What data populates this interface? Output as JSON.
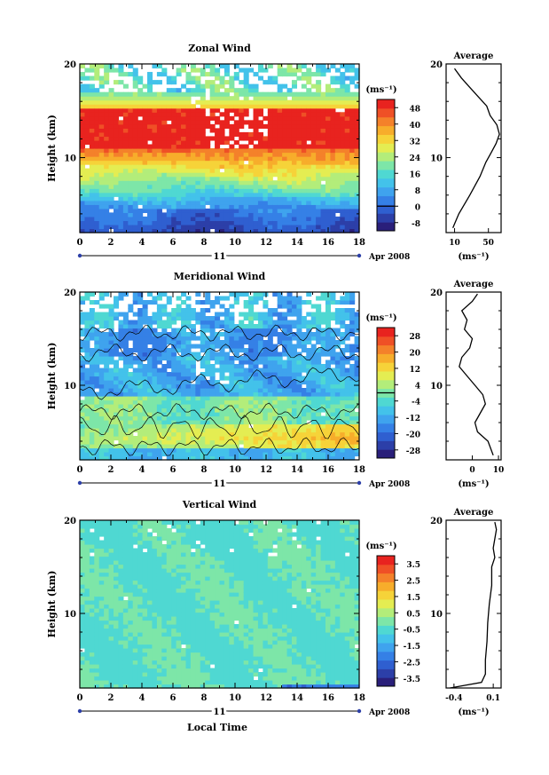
{
  "xlabel": "Local Time",
  "date_label": "Apr 2008",
  "day_label": "11",
  "cbar_unit": "(ms⁻¹)",
  "avg_xlabel": "(ms⁻¹)",
  "colorscale": [
    "#2a1f7a",
    "#2c3fa8",
    "#2f5fd0",
    "#3580e6",
    "#3fa3ee",
    "#43c2ea",
    "#4fd8d2",
    "#7de6a8",
    "#b3ed7a",
    "#e4ed52",
    "#f6d339",
    "#f7ad2b",
    "#f4812a",
    "#ef5026",
    "#e8231f"
  ],
  "chart_data": [
    {
      "id": "zonal",
      "type": "heatmap",
      "title": "Zonal Wind",
      "ylabel": "Height (km)",
      "xlim": [
        0,
        18
      ],
      "ylim": [
        2,
        20
      ],
      "xticks": [
        "0",
        "2",
        "4",
        "6",
        "8",
        "10",
        "12",
        "14",
        "16",
        "18"
      ],
      "yticks": [
        "10",
        "20"
      ],
      "colorbar_ticks": [
        "48",
        "40",
        "32",
        "24",
        "16",
        "8",
        "0",
        "-8"
      ],
      "colorbar_range": [
        -12,
        52
      ],
      "average": {
        "title": "Average",
        "xticks": [
          "10",
          "50"
        ],
        "xlim": [
          0,
          65
        ],
        "heights": [
          2.5,
          4,
          6,
          8,
          9.5,
          10.5,
          11.5,
          12.5,
          13.5,
          14.5,
          15.5,
          16.5,
          17.5,
          18.5,
          19.5
        ],
        "values": [
          8,
          15,
          28,
          40,
          47,
          53,
          59,
          63,
          60,
          52,
          48,
          38,
          28,
          18,
          10
        ]
      }
    },
    {
      "id": "meridional",
      "type": "heatmap",
      "title": "Meridional Wind",
      "ylabel": "Height (km)",
      "xlim": [
        0,
        18
      ],
      "ylim": [
        2,
        20
      ],
      "xticks": [
        "0",
        "2",
        "4",
        "6",
        "8",
        "10",
        "12",
        "14",
        "16",
        "18"
      ],
      "yticks": [
        "10",
        "20"
      ],
      "colorbar_ticks": [
        "28",
        "20",
        "12",
        "4",
        "-4",
        "-12",
        "-20",
        "-28"
      ],
      "colorbar_range": [
        -32,
        32
      ],
      "average": {
        "title": "Average",
        "xticks": [
          "0",
          "10"
        ],
        "xlim": [
          -10,
          11
        ],
        "heights": [
          2.5,
          4,
          5,
          6,
          7,
          8,
          9,
          10,
          11,
          12,
          13,
          14,
          15,
          16,
          17,
          18,
          19,
          19.8
        ],
        "values": [
          8,
          6,
          2,
          1,
          3,
          5,
          4,
          1,
          -2,
          -5,
          -4,
          -1,
          0,
          -3,
          -2,
          -4,
          0,
          2
        ]
      }
    },
    {
      "id": "vertical",
      "type": "heatmap",
      "title": "Vertical Wind",
      "ylabel": "Height (km)",
      "xlim": [
        0,
        18
      ],
      "ylim": [
        2,
        20
      ],
      "xticks": [
        "0",
        "2",
        "4",
        "6",
        "8",
        "10",
        "12",
        "14",
        "16",
        "18"
      ],
      "yticks": [
        "10",
        "20"
      ],
      "colorbar_ticks": [
        "3.5",
        "2.5",
        "1.5",
        "0.5",
        "-0.5",
        "-1.5",
        "-2.5",
        "-3.5"
      ],
      "colorbar_range": [
        -4,
        4
      ],
      "average": {
        "title": "Average",
        "xticks": [
          "-0.4",
          "0.1"
        ],
        "xlim": [
          -0.5,
          0.2
        ],
        "heights": [
          2.0,
          2.6,
          3.5,
          5,
          7,
          9,
          11,
          13,
          15,
          16,
          17,
          18,
          19,
          19.8
        ],
        "values": [
          -0.45,
          -0.05,
          0.0,
          0.0,
          0.02,
          0.03,
          0.05,
          0.08,
          0.08,
          0.12,
          0.1,
          0.12,
          0.14,
          0.12
        ]
      }
    }
  ]
}
